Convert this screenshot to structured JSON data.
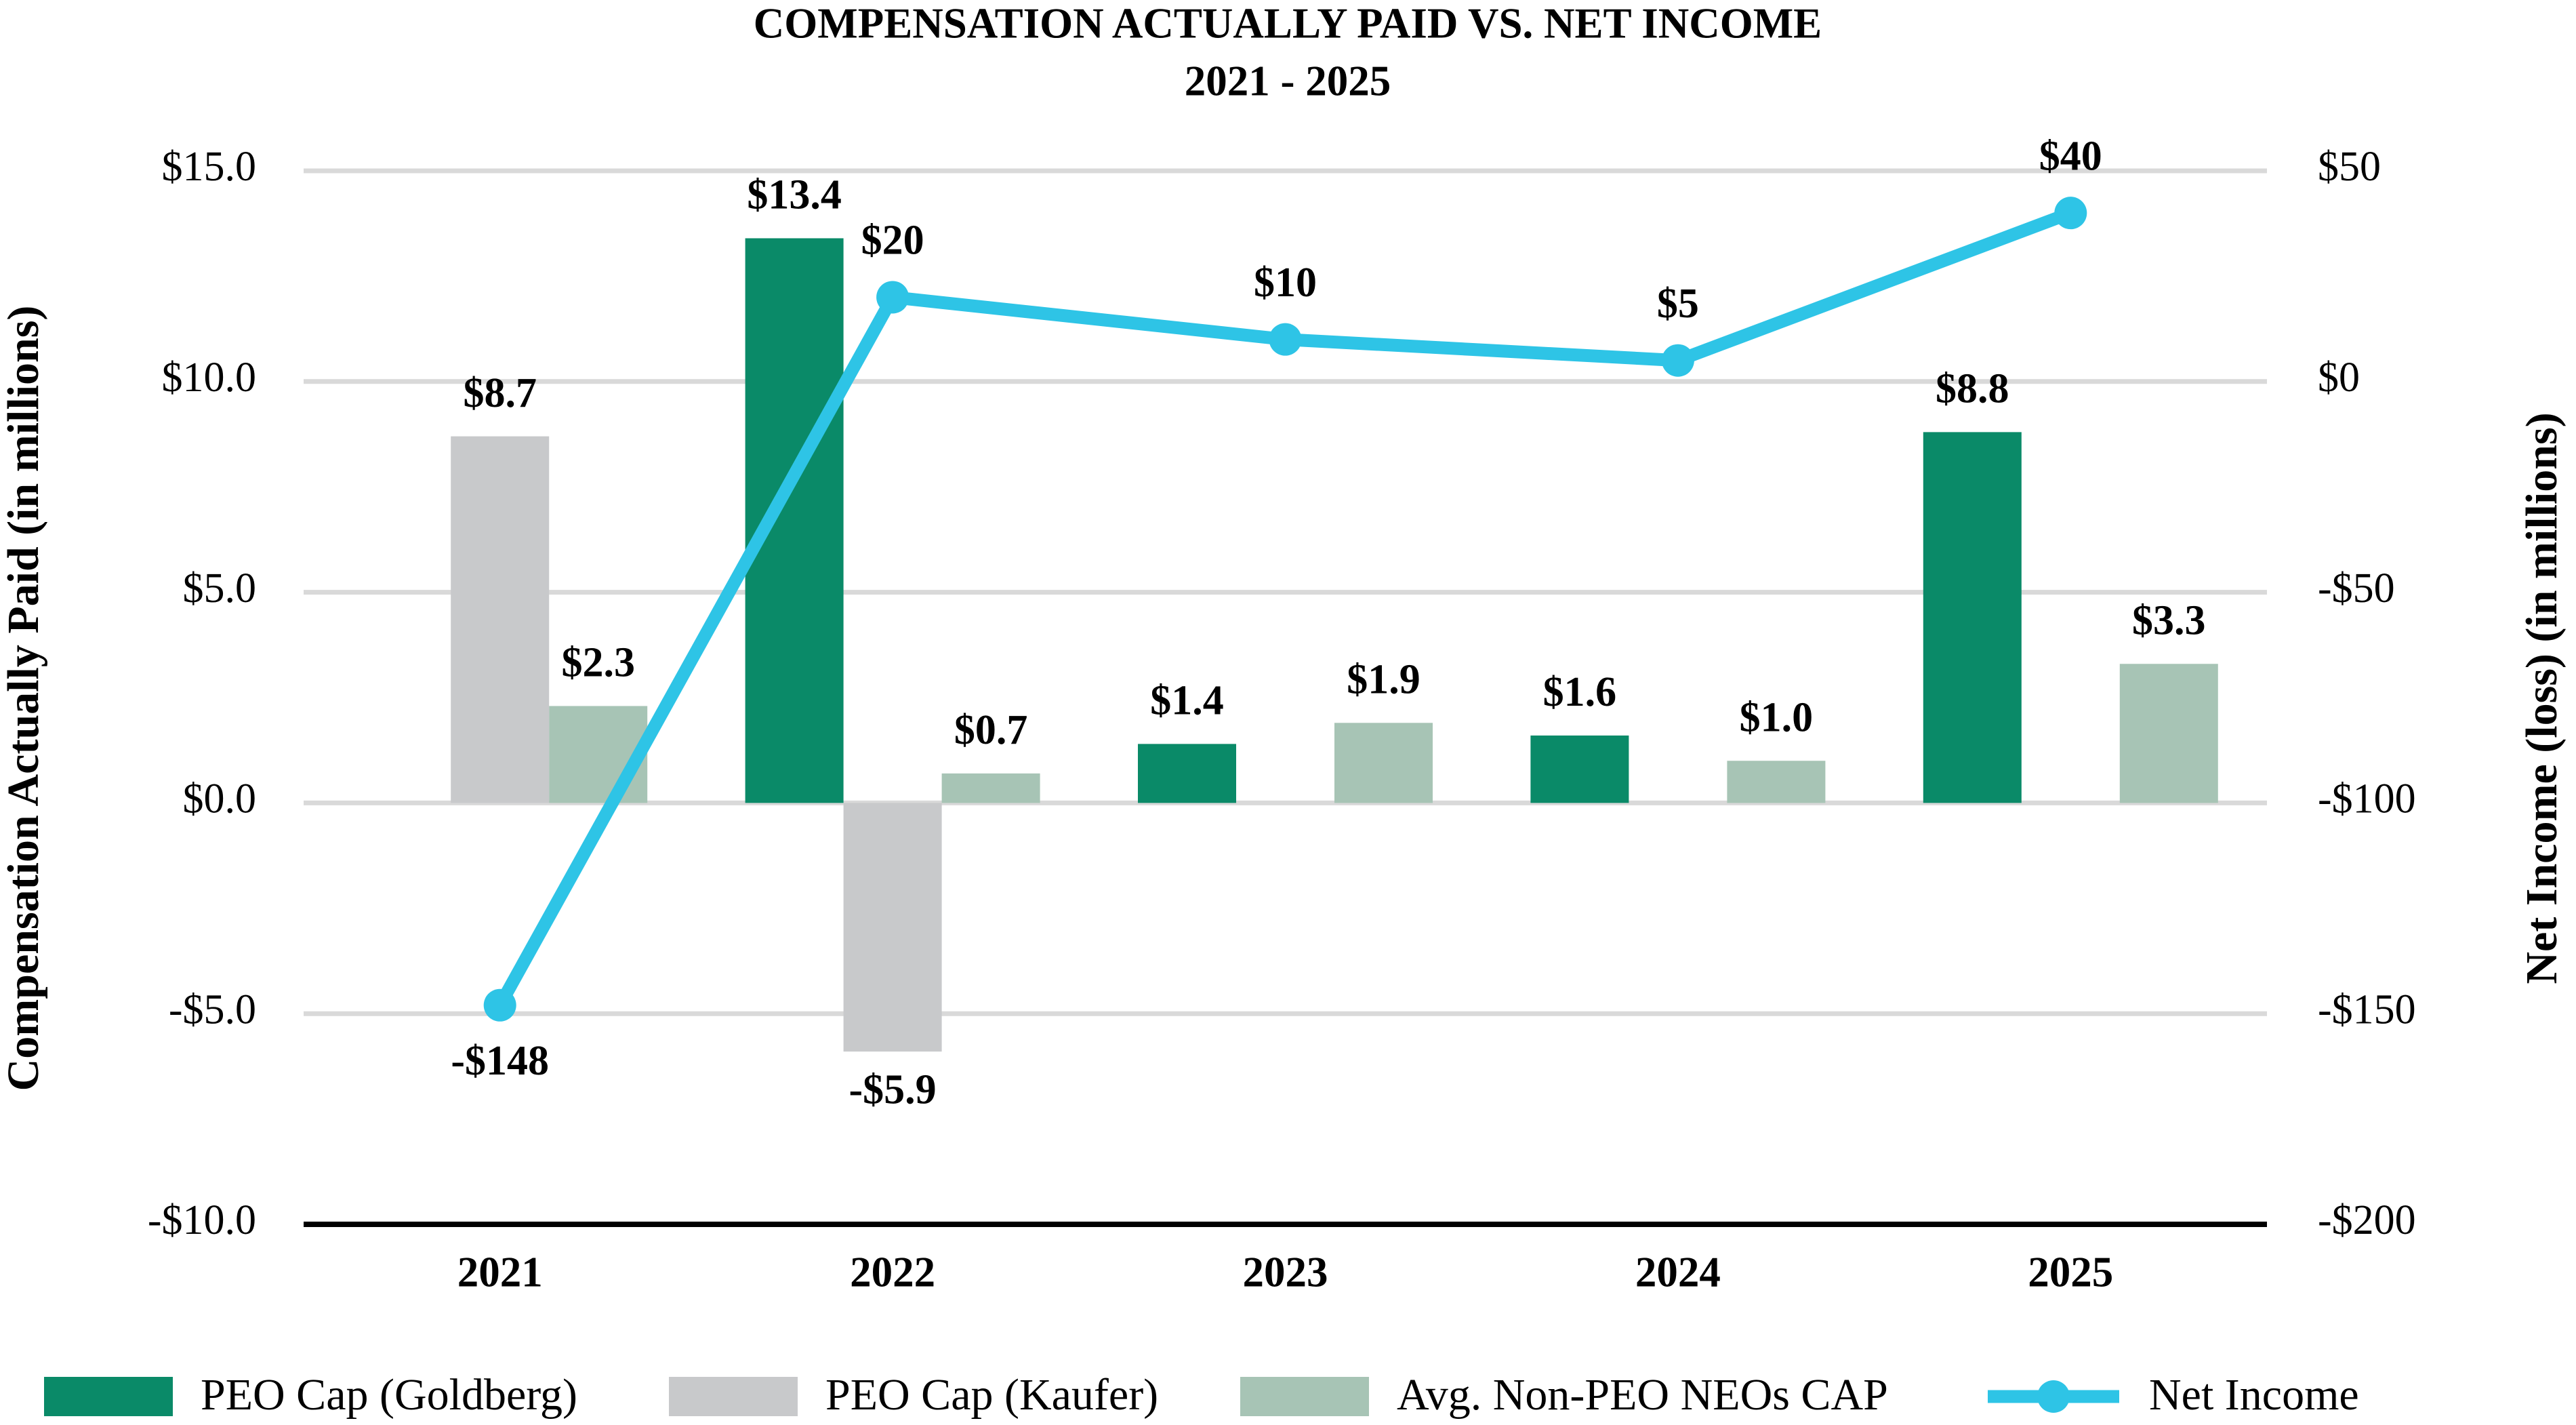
{
  "chart_data": {
    "type": "bar",
    "title": "COMPENSATION ACTUALLY PAID VS. NET INCOME",
    "subtitle": "2021 - 2025",
    "ylabel": "Compensation Actually Paid (in millions)",
    "y2label": "Net Income (loss) (in millions)",
    "categories": [
      "2021",
      "2022",
      "2023",
      "2024",
      "2025"
    ],
    "series": [
      {
        "name": "PEO Cap (Goldberg)",
        "type": "bar",
        "color": "#0a8a68",
        "values": [
          null,
          13.4,
          1.4,
          1.6,
          8.8
        ],
        "value_labels": [
          null,
          "$13.4",
          "$1.4",
          "$1.6",
          "$8.8"
        ]
      },
      {
        "name": "PEO Cap (Kaufer)",
        "type": "bar",
        "color": "#c8c9cb",
        "values": [
          8.7,
          -5.9,
          null,
          null,
          null
        ],
        "value_labels": [
          "$8.7",
          "-$5.9",
          null,
          null,
          null
        ]
      },
      {
        "name": "Avg. Non-PEO NEOs CAP",
        "type": "bar",
        "color": "#a7c4b5",
        "values": [
          2.3,
          0.7,
          1.9,
          1.0,
          3.3
        ],
        "value_labels": [
          "$2.3",
          "$0.7",
          "$1.9",
          "$1.0",
          "$3.3"
        ]
      },
      {
        "name": "Net Income",
        "type": "line",
        "axis": "y2",
        "color": "#2ec4e6",
        "values": [
          -148,
          20,
          10,
          5,
          40
        ],
        "value_labels": [
          "-$148",
          "$20",
          "$10",
          "$5",
          "$40"
        ]
      }
    ],
    "ylim": [
      -10,
      15
    ],
    "yticks": [
      {
        "value": -10,
        "label": "-$10.0"
      },
      {
        "value": -5,
        "label": "-$5.0"
      },
      {
        "value": 0,
        "label": "$0.0"
      },
      {
        "value": 5,
        "label": "$5.0"
      },
      {
        "value": 10,
        "label": "$10.0"
      },
      {
        "value": 15,
        "label": "$15.0"
      }
    ],
    "y2lim": [
      -200,
      50
    ],
    "y2ticks": [
      {
        "value": -200,
        "label": "-$200"
      },
      {
        "value": -150,
        "label": "-$150"
      },
      {
        "value": -100,
        "label": "-$100"
      },
      {
        "value": -50,
        "label": "-$50"
      },
      {
        "value": 0,
        "label": "$0"
      },
      {
        "value": 50,
        "label": "$50"
      }
    ],
    "grid": true,
    "legend": "bottom"
  }
}
